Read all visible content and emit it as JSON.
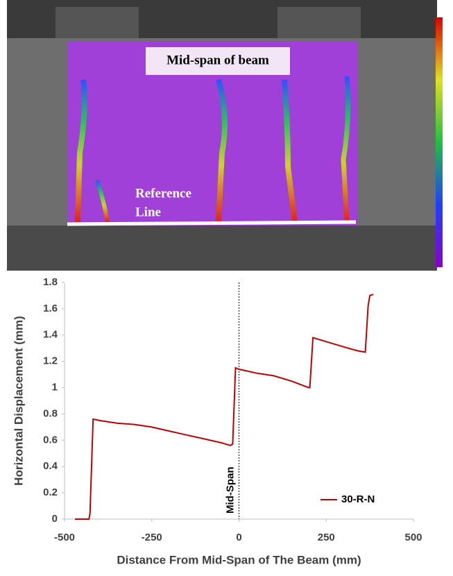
{
  "image": {
    "box_label": "Mid-span of beam",
    "line_label": [
      "Reference",
      "Line"
    ]
  },
  "chart_data": {
    "type": "line",
    "x": [
      -470,
      -430,
      -427,
      -418,
      -400,
      -350,
      -300,
      -250,
      -200,
      -150,
      -100,
      -50,
      -25,
      -18,
      -10,
      0,
      50,
      100,
      150,
      200,
      203,
      212,
      250,
      300,
      340,
      362,
      370,
      375,
      385
    ],
    "series": [
      {
        "name": "30-R-N",
        "color": "#c00000",
        "values": [
          0,
          0,
          0.04,
          0.76,
          0.75,
          0.73,
          0.72,
          0.7,
          0.67,
          0.64,
          0.61,
          0.58,
          0.56,
          0.57,
          1.15,
          1.14,
          1.11,
          1.09,
          1.05,
          1.0,
          1.0,
          1.38,
          1.35,
          1.31,
          1.28,
          1.27,
          1.62,
          1.7,
          1.71
        ]
      }
    ],
    "xlim": [
      -500,
      500
    ],
    "xticks": [
      -500,
      -250,
      0,
      250,
      500
    ],
    "ylim": [
      0,
      1.8
    ],
    "yticks": [
      0,
      0.2,
      0.4,
      0.6,
      0.8,
      1,
      1.2,
      1.4,
      1.6,
      1.8
    ],
    "xlabel": "Distance From Mid-Span of The Beam (mm)",
    "ylabel": "Horizontal Displacement (mm)",
    "annotations": [
      {
        "x": 0,
        "label": "Mid-Span"
      }
    ],
    "legend": "lower right",
    "grid": false
  }
}
